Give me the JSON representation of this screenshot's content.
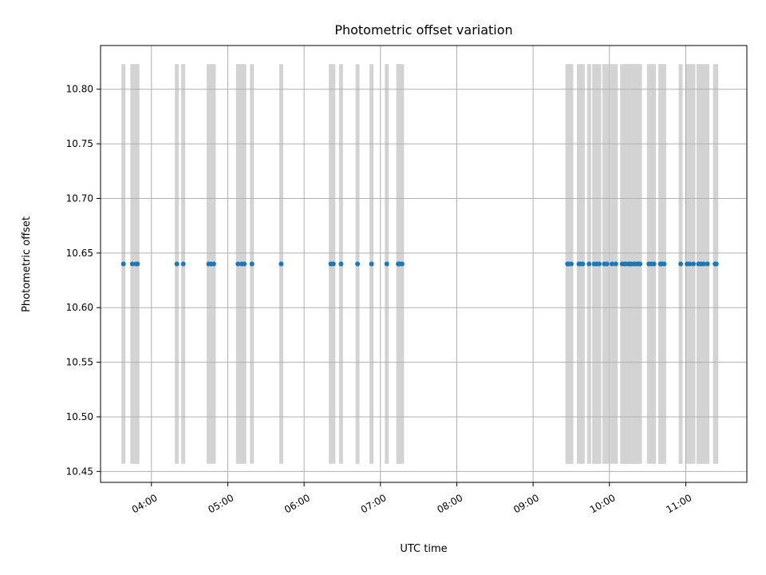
{
  "chart_data": {
    "type": "scatter",
    "title": "Photometric offset variation",
    "xlabel": "UTC time",
    "ylabel": "Photometric offset",
    "x_range": [
      "03:20",
      "11:48"
    ],
    "ylim": [
      10.44,
      10.84
    ],
    "grid": true,
    "x_ticks": [
      "04:00",
      "05:00",
      "06:00",
      "07:00",
      "08:00",
      "09:00",
      "10:00",
      "11:00"
    ],
    "y_ticks": [
      10.45,
      10.5,
      10.55,
      10.6,
      10.65,
      10.7,
      10.75,
      10.8
    ],
    "y_tick_labels": [
      "10.45",
      "10.50",
      "10.55",
      "10.60",
      "10.65",
      "10.70",
      "10.75",
      "10.80"
    ],
    "exposure_band_range": [
      10.457,
      10.823
    ],
    "exposure_band_color": "#d3d3d3",
    "point_color": "#1f77b4",
    "points": {
      "offset": 10.64,
      "times": [
        "03:38",
        "03:45",
        "03:48",
        "03:49",
        "04:20",
        "04:25",
        "04:45",
        "04:47",
        "04:49",
        "05:08",
        "05:11",
        "05:13",
        "05:19",
        "05:42",
        "06:21",
        "06:23",
        "06:29",
        "06:42",
        "06:53",
        "07:05",
        "07:14",
        "07:15",
        "07:17",
        "09:27",
        "09:28",
        "09:30",
        "09:36",
        "09:37",
        "09:39",
        "09:44",
        "09:48",
        "09:50",
        "09:52",
        "09:56",
        "09:58",
        "10:02",
        "10:05",
        "10:10",
        "10:12",
        "10:13",
        "10:15",
        "10:16",
        "10:17",
        "10:19",
        "10:20",
        "10:22",
        "10:23",
        "10:24",
        "10:31",
        "10:33",
        "10:35",
        "10:40",
        "10:41",
        "10:43",
        "10:56",
        "11:01",
        "11:03",
        "11:06",
        "11:10",
        "11:12",
        "11:14",
        "11:17",
        "11:23",
        "11:24"
      ]
    }
  }
}
